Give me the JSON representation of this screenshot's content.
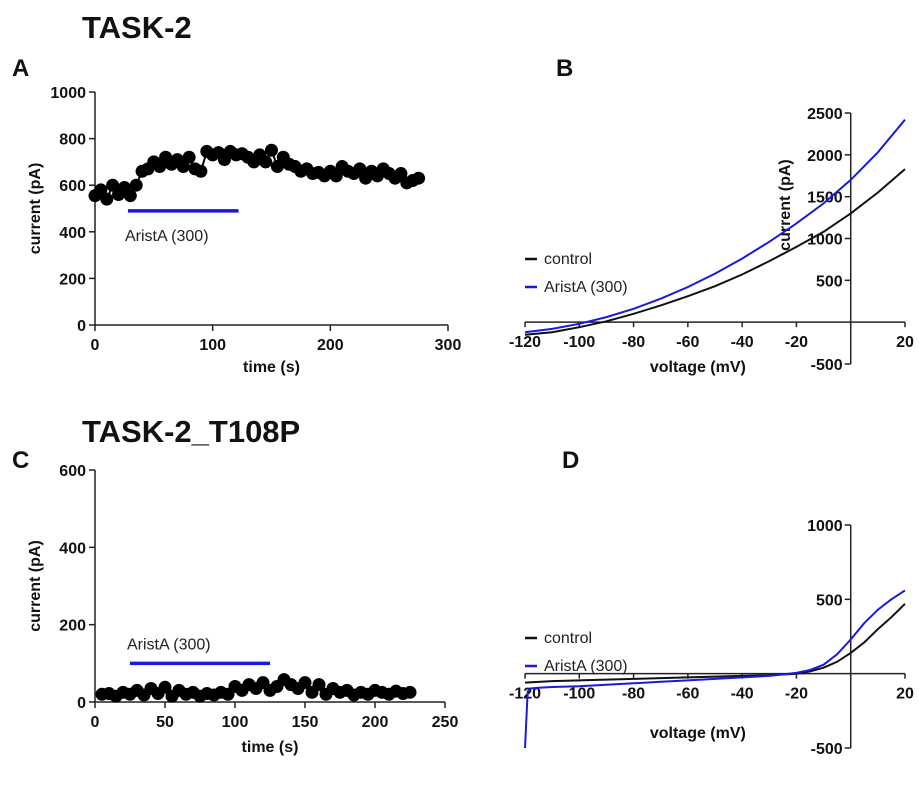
{
  "chart_data": [
    {
      "panel": "A",
      "heading": "TASK-2",
      "type": "scatter",
      "xlabel": "time (s)",
      "ylabel": "current (pA)",
      "xlim": [
        0,
        300
      ],
      "ylim": [
        0,
        1000
      ],
      "xticks": [
        0,
        100,
        200,
        300
      ],
      "yticks": [
        0,
        200,
        400,
        600,
        800,
        1000
      ],
      "connected": true,
      "color": "#000000",
      "x": [
        0,
        5,
        10,
        15,
        20,
        25,
        30,
        35,
        40,
        45,
        50,
        55,
        60,
        65,
        70,
        75,
        80,
        85,
        90,
        95,
        100,
        105,
        110,
        115,
        120,
        125,
        130,
        135,
        140,
        145,
        150,
        155,
        160,
        165,
        170,
        175,
        180,
        185,
        190,
        195,
        200,
        205,
        210,
        215,
        220,
        225,
        230,
        235,
        240,
        245,
        250,
        255,
        260,
        265,
        270,
        275
      ],
      "y": [
        555,
        580,
        540,
        600,
        560,
        590,
        555,
        600,
        660,
        670,
        700,
        680,
        720,
        690,
        710,
        680,
        720,
        670,
        660,
        745,
        730,
        740,
        710,
        745,
        730,
        735,
        720,
        700,
        730,
        700,
        750,
        680,
        720,
        690,
        680,
        660,
        670,
        650,
        655,
        640,
        660,
        640,
        680,
        660,
        650,
        670,
        630,
        660,
        640,
        670,
        650,
        630,
        650,
        610,
        620,
        630
      ],
      "bar": {
        "label": "AristA (300)",
        "x0": 28,
        "x1": 122,
        "y": 490,
        "color": "#1a1adc"
      }
    },
    {
      "panel": "B",
      "type": "line",
      "xlabel": "voltage (mV)",
      "ylabel": "current (pA)",
      "xlim": [
        -120,
        20
      ],
      "ylim": [
        -500,
        2500
      ],
      "xticks": [
        -120,
        -100,
        -80,
        -60,
        -40,
        -20,
        20
      ],
      "xtick_labels": [
        "-120",
        "-100",
        "-80",
        "-60",
        "-40",
        "-20",
        "20"
      ],
      "yticks": [
        -500,
        500,
        1000,
        1500,
        2000,
        2500
      ],
      "legend": "left-middle",
      "series": [
        {
          "name": "control",
          "color": "#111111",
          "x": [
            -120,
            -110,
            -100,
            -90,
            -80,
            -70,
            -60,
            -50,
            -40,
            -30,
            -20,
            -10,
            0,
            10,
            20
          ],
          "y": [
            -150,
            -120,
            -60,
            10,
            100,
            200,
            310,
            430,
            570,
            730,
            900,
            1080,
            1300,
            1550,
            1830
          ]
        },
        {
          "name": "AristA (300)",
          "color": "#1a1adc",
          "x": [
            -120,
            -110,
            -100,
            -90,
            -80,
            -70,
            -60,
            -50,
            -40,
            -30,
            -20,
            -10,
            0,
            10,
            20
          ],
          "y": [
            -120,
            -80,
            -20,
            60,
            160,
            280,
            420,
            580,
            760,
            960,
            1180,
            1420,
            1700,
            2030,
            2420
          ]
        }
      ]
    },
    {
      "panel": "C",
      "heading": "TASK-2_T108P",
      "type": "scatter",
      "xlabel": "time (s)",
      "ylabel": "current (pA)",
      "xlim": [
        0,
        250
      ],
      "ylim": [
        0,
        600
      ],
      "xticks": [
        0,
        50,
        100,
        150,
        200,
        250
      ],
      "yticks": [
        0,
        200,
        400,
        600
      ],
      "connected": true,
      "color": "#000000",
      "x": [
        5,
        10,
        15,
        20,
        25,
        30,
        35,
        40,
        45,
        50,
        55,
        60,
        65,
        70,
        75,
        80,
        85,
        90,
        95,
        100,
        105,
        110,
        115,
        120,
        125,
        130,
        135,
        140,
        145,
        150,
        155,
        160,
        165,
        170,
        175,
        180,
        185,
        190,
        195,
        200,
        205,
        210,
        215,
        220,
        225
      ],
      "y": [
        20,
        22,
        15,
        25,
        20,
        30,
        18,
        35,
        22,
        38,
        15,
        30,
        20,
        25,
        15,
        22,
        18,
        25,
        20,
        40,
        30,
        45,
        35,
        50,
        30,
        40,
        58,
        45,
        35,
        50,
        25,
        45,
        20,
        35,
        25,
        30,
        18,
        25,
        20,
        30,
        25,
        20,
        28,
        22,
        25
      ],
      "bar": {
        "label": "AristA (300)",
        "x0": 25,
        "x1": 125,
        "y": 100,
        "color": "#1a1adc"
      }
    },
    {
      "panel": "D",
      "type": "line",
      "xlabel": "voltage (mV)",
      "xlim": [
        -120,
        20
      ],
      "ylim": [
        -500,
        1000
      ],
      "xticks": [
        -120,
        -100,
        -80,
        -60,
        -40,
        -20,
        20
      ],
      "xtick_labels": [
        "-120",
        "-100",
        "-80",
        "-60",
        "-40",
        "-20",
        "20"
      ],
      "yticks": [
        -500,
        500,
        1000
      ],
      "legend": "left-middle",
      "series": [
        {
          "name": "control",
          "color": "#111111",
          "x": [
            -120,
            -110,
            -100,
            -90,
            -80,
            -70,
            -60,
            -50,
            -40,
            -30,
            -20,
            -15,
            -10,
            -5,
            0,
            5,
            10,
            15,
            20
          ],
          "y": [
            -60,
            -50,
            -45,
            -40,
            -35,
            -30,
            -25,
            -20,
            -15,
            -10,
            0,
            15,
            40,
            80,
            140,
            210,
            300,
            380,
            470
          ]
        },
        {
          "name": "AristA (300)",
          "color": "#1a1adc",
          "x": [
            -120,
            -119,
            -118,
            -115,
            -110,
            -100,
            -90,
            -80,
            -70,
            -60,
            -50,
            -40,
            -30,
            -20,
            -15,
            -10,
            -5,
            0,
            5,
            10,
            15,
            20
          ],
          "y": [
            -500,
            -120,
            -100,
            -95,
            -90,
            -85,
            -75,
            -65,
            -55,
            -45,
            -35,
            -25,
            -15,
            5,
            25,
            60,
            130,
            230,
            340,
            430,
            500,
            560
          ]
        }
      ]
    }
  ]
}
